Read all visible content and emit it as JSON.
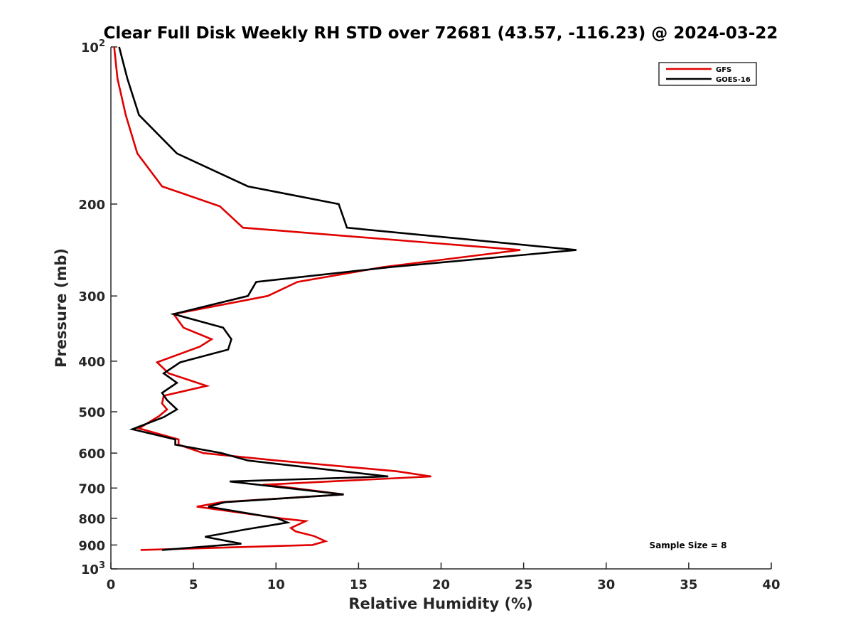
{
  "chart_data": {
    "type": "line",
    "title": "Clear Full Disk Weekly RH STD over 72681 (43.57, -116.23) @ 2024-03-22",
    "xlabel": "Relative Humidity (%)",
    "ylabel": "Pressure (mb)",
    "xlim": [
      0,
      40
    ],
    "ylim": [
      100,
      1000
    ],
    "y_scale": "log",
    "y_reversed": true,
    "grid": false,
    "legend_position": "top-right",
    "x_ticks": [
      "0",
      "5",
      "10",
      "15",
      "20",
      "25",
      "30",
      "35",
      "40"
    ],
    "y_ticks": [
      {
        "value": 100,
        "base": "10",
        "exp": "2"
      },
      {
        "value": 200,
        "label": "200"
      },
      {
        "value": 300,
        "label": "300"
      },
      {
        "value": 400,
        "label": "400"
      },
      {
        "value": 500,
        "label": "500"
      },
      {
        "value": 600,
        "label": "600"
      },
      {
        "value": 700,
        "label": "700"
      },
      {
        "value": 800,
        "label": "800"
      },
      {
        "value": 900,
        "label": "900"
      },
      {
        "value": 1000,
        "base": "10",
        "exp": "3"
      }
    ],
    "annotation": "Sample Size = 8",
    "series": [
      {
        "name": "GFS",
        "color": "#e00000",
        "points": [
          [
            0.2,
            100
          ],
          [
            0.4,
            115
          ],
          [
            0.9,
            135
          ],
          [
            1.6,
            160
          ],
          [
            3.1,
            185
          ],
          [
            6.6,
            202
          ],
          [
            8.0,
            222
          ],
          [
            24.8,
            245
          ],
          [
            16.5,
            264
          ],
          [
            11.3,
            282
          ],
          [
            9.5,
            300
          ],
          [
            3.8,
            325
          ],
          [
            4.4,
            345
          ],
          [
            6.1,
            363
          ],
          [
            5.4,
            375
          ],
          [
            2.8,
            402
          ],
          [
            3.5,
            422
          ],
          [
            5.8,
            446
          ],
          [
            3.2,
            466
          ],
          [
            3.1,
            482
          ],
          [
            3.4,
            495
          ],
          [
            2.9,
            510
          ],
          [
            1.7,
            538
          ],
          [
            4.1,
            565
          ],
          [
            4.1,
            578
          ],
          [
            5.6,
            600
          ],
          [
            9.6,
            618
          ],
          [
            17.3,
            650
          ],
          [
            19.4,
            665
          ],
          [
            9.2,
            690
          ],
          [
            10.3,
            695
          ],
          [
            14.1,
            720
          ],
          [
            6.7,
            745
          ],
          [
            5.2,
            760
          ],
          [
            10.3,
            800
          ],
          [
            11.8,
            810
          ],
          [
            10.9,
            835
          ],
          [
            11.2,
            848
          ],
          [
            12.3,
            865
          ],
          [
            13.0,
            885
          ],
          [
            12.2,
            900
          ],
          [
            1.8,
            920
          ]
        ]
      },
      {
        "name": "GOES-16",
        "color": "#000000",
        "points": [
          [
            0.5,
            100
          ],
          [
            1.0,
            115
          ],
          [
            1.7,
            135
          ],
          [
            4.0,
            160
          ],
          [
            8.3,
            185
          ],
          [
            13.8,
            200
          ],
          [
            14.3,
            222
          ],
          [
            28.2,
            245
          ],
          [
            17.0,
            264
          ],
          [
            8.8,
            282
          ],
          [
            8.3,
            300
          ],
          [
            3.8,
            325
          ],
          [
            6.8,
            345
          ],
          [
            7.3,
            363
          ],
          [
            7.1,
            380
          ],
          [
            4.2,
            402
          ],
          [
            3.2,
            422
          ],
          [
            4.0,
            440
          ],
          [
            3.1,
            460
          ],
          [
            3.4,
            475
          ],
          [
            4.0,
            495
          ],
          [
            3.2,
            512
          ],
          [
            1.3,
            540
          ],
          [
            3.9,
            565
          ],
          [
            3.9,
            578
          ],
          [
            6.7,
            600
          ],
          [
            8.3,
            620
          ],
          [
            14.0,
            650
          ],
          [
            16.8,
            665
          ],
          [
            7.2,
            680
          ],
          [
            14.1,
            720
          ],
          [
            6.9,
            745
          ],
          [
            5.9,
            760
          ],
          [
            10.1,
            800
          ],
          [
            10.7,
            815
          ],
          [
            8.2,
            840
          ],
          [
            5.7,
            868
          ],
          [
            7.9,
            895
          ],
          [
            3.1,
            920
          ]
        ]
      }
    ]
  }
}
